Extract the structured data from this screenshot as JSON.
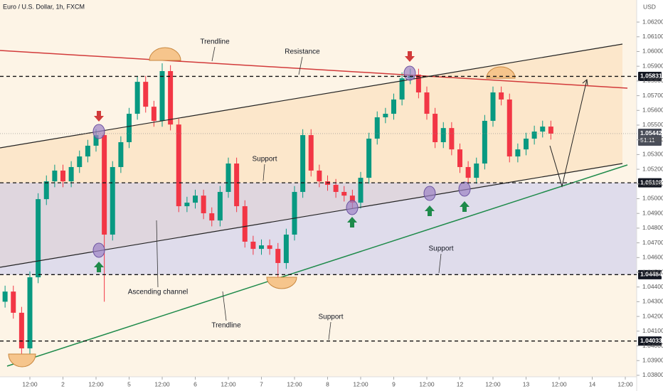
{
  "chart_data": {
    "type": "candlestick",
    "title": "Euro / U.S. Dollar, 1h, FXCM",
    "currency": "USD",
    "x": [
      -9,
      -6,
      -3,
      0,
      3,
      6,
      9,
      12,
      15,
      18,
      21,
      24,
      27,
      30,
      33,
      36,
      39,
      42,
      45,
      48,
      51,
      54,
      57,
      60,
      63,
      66,
      69,
      72,
      75,
      78,
      81,
      84,
      87,
      90,
      93,
      96,
      99,
      102,
      105,
      108,
      111,
      114,
      117,
      120,
      123,
      126,
      129,
      132,
      135,
      138,
      141,
      144,
      147,
      150,
      153,
      156,
      159,
      162,
      165,
      168,
      171,
      174,
      177,
      180,
      183,
      186,
      189
    ],
    "open": [
      1.043,
      1.04369,
      1.04225,
      1.03983,
      1.04466,
      1.04997,
      1.05118,
      1.05191,
      1.05118,
      1.05215,
      1.05287,
      1.0536,
      1.05432,
      1.04756,
      1.05215,
      1.05384,
      1.05577,
      1.05794,
      1.05625,
      1.05529,
      1.05867,
      1.05504,
      1.04949,
      1.04973,
      1.05021,
      1.04901,
      1.04852,
      1.05046,
      1.05239,
      1.04949,
      1.04708,
      1.04659,
      1.04683,
      1.04659,
      1.04563,
      1.04756,
      1.05046,
      1.05432,
      1.05191,
      1.05118,
      1.05094,
      1.05046,
      1.05021,
      1.04973,
      1.05142,
      1.05408,
      1.05553,
      1.05577,
      1.05674,
      1.05818,
      1.05843,
      1.05722,
      1.05577,
      1.05384,
      1.0548,
      1.05335,
      1.05215,
      1.05142,
      1.05239,
      1.05529,
      1.05722,
      1.05674,
      1.05287,
      1.05335,
      1.05408,
      1.05456,
      1.0549
    ],
    "high": [
      1.04409,
      1.04409,
      1.04265,
      1.04506,
      1.05037,
      1.05158,
      1.05231,
      1.05231,
      1.05255,
      1.05327,
      1.054,
      1.05472,
      1.05472,
      1.05255,
      1.05424,
      1.05617,
      1.05834,
      1.05834,
      1.05665,
      1.0592,
      1.05907,
      1.05544,
      1.05013,
      1.05061,
      1.05061,
      1.04941,
      1.05086,
      1.05279,
      1.05279,
      1.04989,
      1.04748,
      1.04723,
      1.04723,
      1.04699,
      1.04796,
      1.05086,
      1.05472,
      1.05472,
      1.05231,
      1.05158,
      1.05134,
      1.05086,
      1.05061,
      1.05182,
      1.05448,
      1.05593,
      1.05617,
      1.05714,
      1.05858,
      1.05883,
      1.05883,
      1.05762,
      1.05617,
      1.0552,
      1.0552,
      1.05375,
      1.05255,
      1.05279,
      1.05569,
      1.05762,
      1.05762,
      1.05714,
      1.05375,
      1.05448,
      1.05496,
      1.0553,
      1.0553
    ],
    "low": [
      1.0426,
      1.04185,
      1.0392,
      1.03943,
      1.04426,
      1.04957,
      1.05078,
      1.05078,
      1.05078,
      1.05175,
      1.05247,
      1.0532,
      1.043,
      1.04716,
      1.05175,
      1.05344,
      1.05537,
      1.05585,
      1.05489,
      1.05489,
      1.05464,
      1.04909,
      1.04909,
      1.04933,
      1.04861,
      1.04812,
      1.04812,
      1.05006,
      1.04909,
      1.04668,
      1.04619,
      1.04619,
      1.04619,
      1.0444,
      1.04523,
      1.04716,
      1.05006,
      1.05151,
      1.05078,
      1.05054,
      1.05006,
      1.04981,
      1.04933,
      1.04933,
      1.05102,
      1.05368,
      1.05513,
      1.05537,
      1.05634,
      1.05778,
      1.05682,
      1.05537,
      1.05344,
      1.05344,
      1.05295,
      1.05175,
      1.05102,
      1.05102,
      1.05199,
      1.05489,
      1.05634,
      1.05247,
      1.05247,
      1.05295,
      1.05368,
      1.05416,
      1.05402
    ],
    "close": [
      1.04369,
      1.04225,
      1.03983,
      1.04466,
      1.04997,
      1.05118,
      1.05191,
      1.05118,
      1.05215,
      1.05287,
      1.0536,
      1.05432,
      1.04756,
      1.05215,
      1.05384,
      1.05577,
      1.05794,
      1.05625,
      1.05529,
      1.05867,
      1.05504,
      1.04949,
      1.04973,
      1.05021,
      1.04901,
      1.04852,
      1.05046,
      1.05239,
      1.04949,
      1.04708,
      1.04659,
      1.04683,
      1.04659,
      1.04563,
      1.04756,
      1.05046,
      1.05432,
      1.05191,
      1.05118,
      1.05094,
      1.05046,
      1.05021,
      1.04973,
      1.05142,
      1.05408,
      1.05553,
      1.05577,
      1.05674,
      1.05818,
      1.05843,
      1.05722,
      1.05577,
      1.05384,
      1.0548,
      1.05335,
      1.05215,
      1.05142,
      1.05239,
      1.05529,
      1.05722,
      1.05674,
      1.05287,
      1.05335,
      1.05408,
      1.05456,
      1.0549,
      1.05442
    ],
    "up_color": "#089981",
    "down_color": "#f23645",
    "xlim": [
      -10.84,
      220.13
    ],
    "ylim": [
      1.0379,
      1.0635
    ],
    "xticks": [
      {
        "value": 0,
        "label": "12:00"
      },
      {
        "value": 12,
        "label": "2"
      },
      {
        "value": 24,
        "label": "12:00"
      },
      {
        "value": 36,
        "label": "5"
      },
      {
        "value": 48,
        "label": "12:00"
      },
      {
        "value": 60,
        "label": "6"
      },
      {
        "value": 72,
        "label": "12:00"
      },
      {
        "value": 84,
        "label": "7"
      },
      {
        "value": 96,
        "label": "12:00"
      },
      {
        "value": 108,
        "label": "8"
      },
      {
        "value": 120,
        "label": "12:00"
      },
      {
        "value": 132,
        "label": "9"
      },
      {
        "value": 144,
        "label": "12:00"
      },
      {
        "value": 156,
        "label": "12"
      },
      {
        "value": 168,
        "label": "12:00"
      },
      {
        "value": 180,
        "label": "13"
      },
      {
        "value": 192,
        "label": "12:00"
      },
      {
        "value": 204,
        "label": "14"
      },
      {
        "value": 216,
        "label": "12:00"
      }
    ],
    "yticks": [
      {
        "value": 1.038,
        "label": "1.03800"
      },
      {
        "value": 1.039,
        "label": "1.03900"
      },
      {
        "value": 1.04,
        "label": "1.04000"
      },
      {
        "value": 1.041,
        "label": "1.04100"
      },
      {
        "value": 1.042,
        "label": "1.04200"
      },
      {
        "value": 1.043,
        "label": "1.04300"
      },
      {
        "value": 1.044,
        "label": "1.04400"
      },
      {
        "value": 1.045,
        "label": "1.04500"
      },
      {
        "value": 1.046,
        "label": "1.04600"
      },
      {
        "value": 1.047,
        "label": "1.04700"
      },
      {
        "value": 1.048,
        "label": "1.04800"
      },
      {
        "value": 1.049,
        "label": "1.04900"
      },
      {
        "value": 1.05,
        "label": "1.05000"
      },
      {
        "value": 1.051,
        "label": "1.05100"
      },
      {
        "value": 1.052,
        "label": "1.05200"
      },
      {
        "value": 1.053,
        "label": "1.05300"
      },
      {
        "value": 1.054,
        "label": "1.05400"
      },
      {
        "value": 1.055,
        "label": "1.05500"
      },
      {
        "value": 1.056,
        "label": "1.05600"
      },
      {
        "value": 1.057,
        "label": "1.05700"
      },
      {
        "value": 1.058,
        "label": "1.05800"
      },
      {
        "value": 1.059,
        "label": "1.05900"
      },
      {
        "value": 1.06,
        "label": "1.06000"
      },
      {
        "value": 1.061,
        "label": "1.06100"
      },
      {
        "value": 1.062,
        "label": "1.06200"
      }
    ],
    "levels": [
      {
        "value": 1.05831,
        "label": "1.05831"
      },
      {
        "value": 1.05108,
        "label": "1.05108"
      },
      {
        "value": 1.04484,
        "label": "1.04484"
      },
      {
        "value": 1.04033,
        "label": "1.04033"
      }
    ],
    "last_price": {
      "value": 1.05442,
      "label": "1.05442",
      "countdown": "51:11"
    },
    "annotations": [
      "Trendline",
      "Resistance",
      "Support",
      "Ascending channel",
      "Support",
      "Trendline",
      "Support"
    ]
  }
}
